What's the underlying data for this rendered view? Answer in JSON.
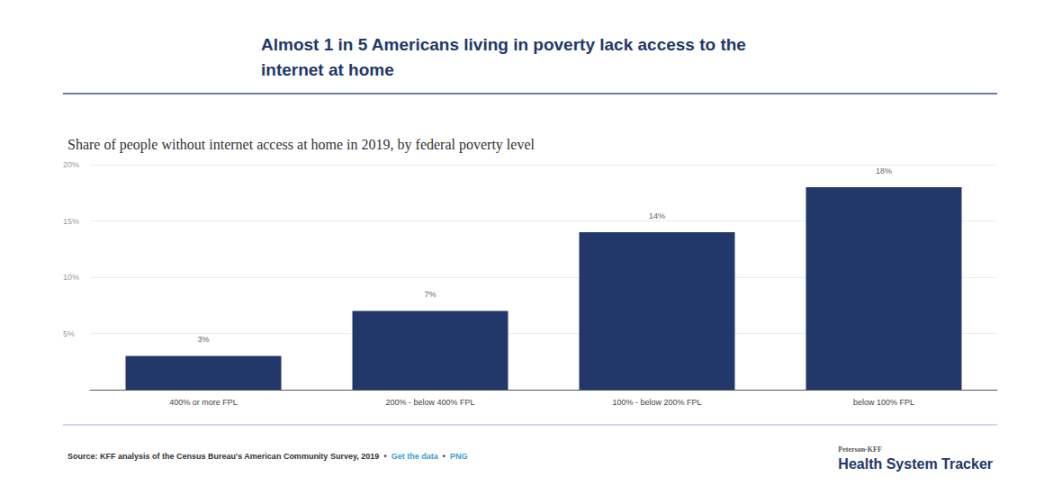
{
  "chart_data": {
    "type": "bar",
    "title": "Almost 1 in 5 Americans living in poverty lack access to the internet at home",
    "subtitle": "Share of people without internet access at home in 2019, by federal poverty level",
    "categories": [
      "400% or more FPL",
      "200% - below 400% FPL",
      "100% - below 200% FPL",
      "below 100% FPL"
    ],
    "values": [
      3,
      7,
      14,
      18
    ],
    "value_labels": [
      "3%",
      "7%",
      "14%",
      "18%"
    ],
    "data_labels": true,
    "color": "#22376a",
    "ylim": [
      0,
      20
    ],
    "yticks": [
      {
        "value": 5,
        "label": "5%"
      },
      {
        "value": 10,
        "label": "10%"
      },
      {
        "value": 15,
        "label": "15%"
      },
      {
        "value": 20,
        "label": "20%"
      }
    ],
    "grid": true,
    "source": "Source: KFF analysis of the Census Bureau's American Community Survey, 2019",
    "separator": "•",
    "source_links": [
      "Get the data",
      "PNG"
    ],
    "brand": [
      "Peterson-KFF",
      "Health System Tracker"
    ]
  }
}
